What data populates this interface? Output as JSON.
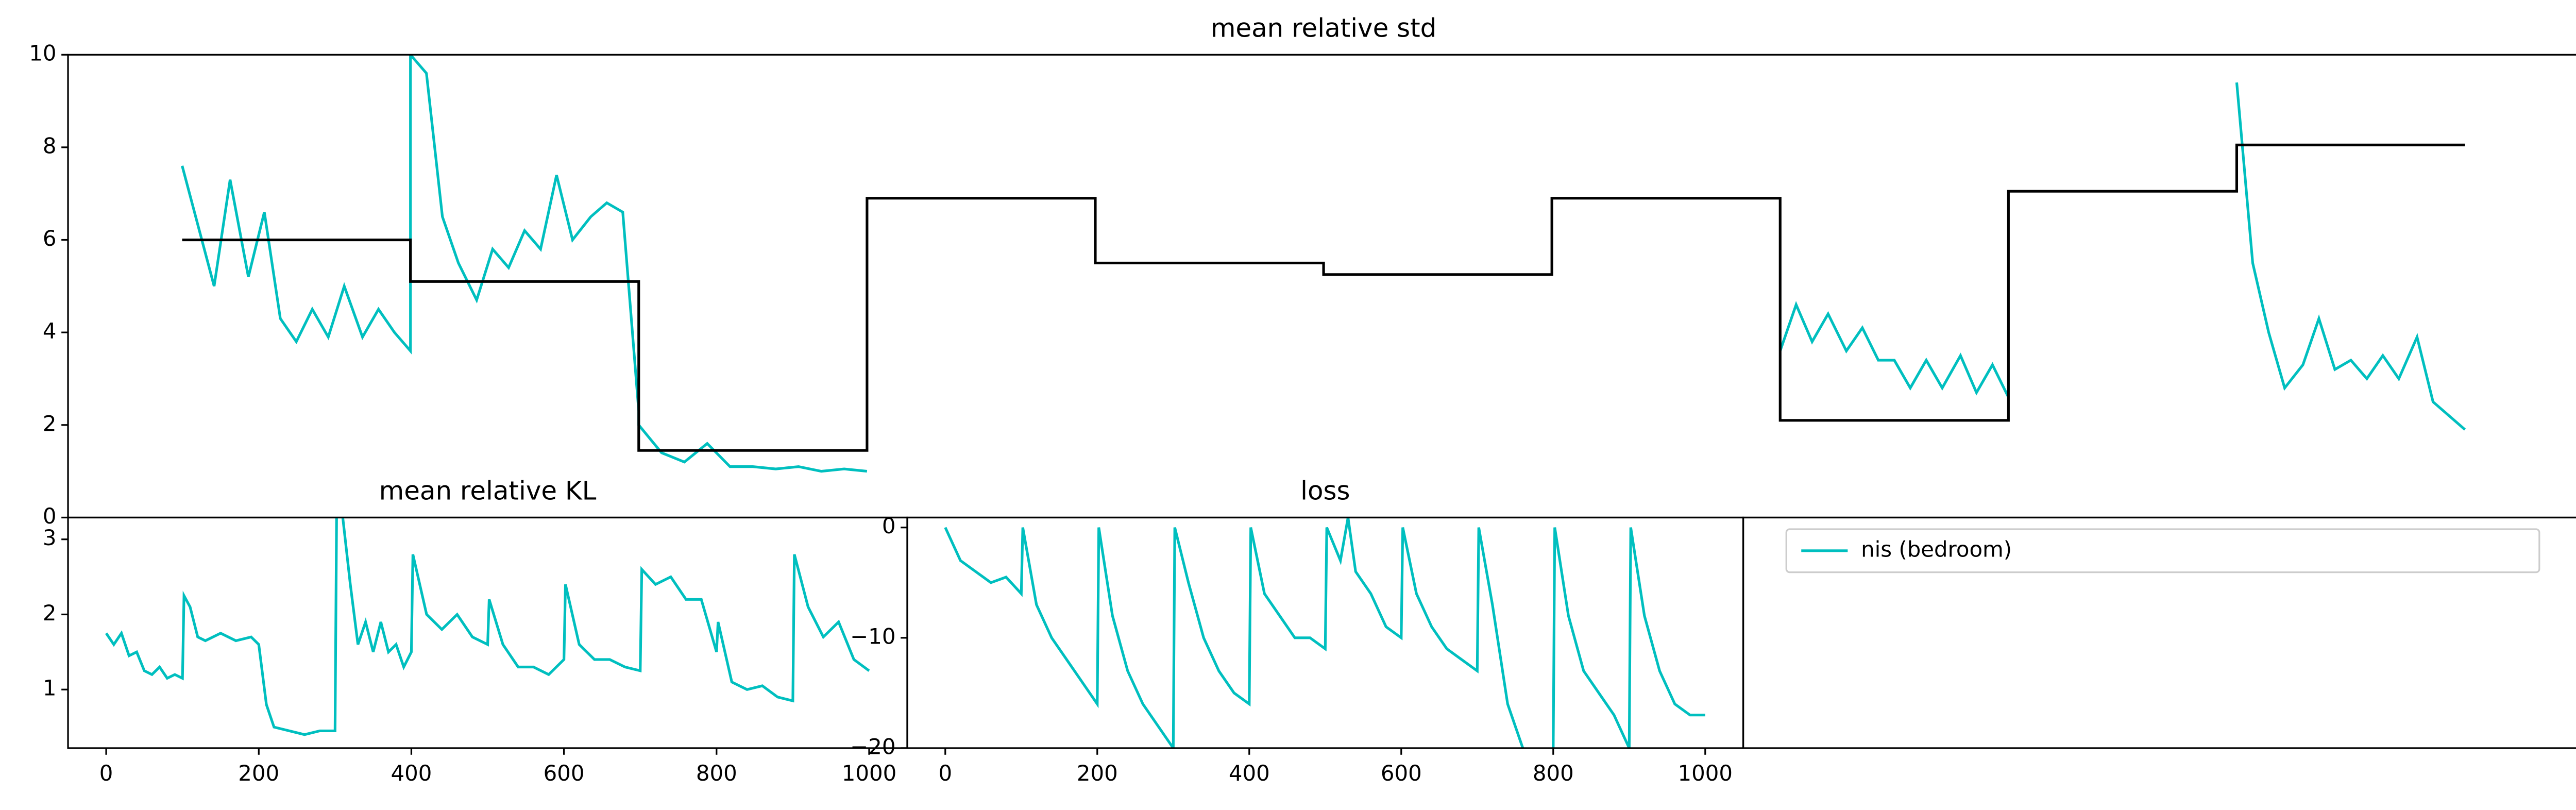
{
  "chart_data": [
    {
      "type": "line",
      "title": "mean relative std",
      "xlim": [
        -0.5,
        10.5
      ],
      "ylim": [
        0,
        10
      ],
      "yticks": [
        0,
        2,
        4,
        6,
        8,
        10
      ],
      "series": [
        {
          "color": "#00bfbf",
          "x": [
            0,
            0.07,
            0.14,
            0.21,
            0.29,
            0.36,
            0.43,
            0.5,
            0.57,
            0.64,
            0.71,
            0.79,
            0.86,
            0.93,
            1.0,
            1.0,
            1.07,
            1.14,
            1.21,
            1.29,
            1.36,
            1.43,
            1.5,
            1.57,
            1.64,
            1.71,
            1.79,
            1.86,
            1.93,
            2.0,
            2.0,
            2.1,
            2.2,
            2.3,
            2.4,
            2.5,
            2.6,
            2.7,
            2.8,
            2.9,
            3.0,
            5.0,
            7.0,
            7.07,
            7.14,
            7.21,
            7.29,
            7.36,
            7.43,
            7.5,
            7.57,
            7.64,
            7.71,
            7.79,
            7.86,
            7.93,
            8.0,
            8.5,
            9.0,
            9.07,
            9.14,
            9.21,
            9.29,
            9.36,
            9.43,
            9.5,
            9.57,
            9.64,
            9.71,
            9.79,
            9.86,
            9.93,
            10.0
          ],
          "values": [
            7.6,
            6.3,
            5.0,
            7.3,
            5.2,
            6.6,
            4.3,
            3.8,
            4.5,
            3.9,
            5.0,
            3.9,
            4.5,
            4.0,
            3.6,
            10.0,
            9.6,
            6.5,
            5.5,
            4.7,
            5.8,
            5.4,
            6.2,
            5.8,
            7.4,
            6.0,
            6.5,
            6.8,
            6.6,
            2.3,
            2.0,
            1.4,
            1.2,
            1.6,
            1.1,
            1.1,
            1.05,
            1.1,
            1.0,
            1.05,
            1.0,
            null,
            3.6,
            4.6,
            3.8,
            4.4,
            3.6,
            4.1,
            3.4,
            3.4,
            2.8,
            3.4,
            2.8,
            3.5,
            2.7,
            3.3,
            2.6,
            null,
            9.4,
            5.5,
            4.0,
            2.8,
            3.3,
            4.3,
            3.2,
            3.4,
            3.0,
            3.5,
            3.0,
            3.9,
            2.5,
            2.2,
            1.9
          ]
        },
        {
          "color": "#000000",
          "drawstyle": "steps-post",
          "x": [
            0,
            1,
            2,
            3,
            4,
            5,
            6,
            7,
            8,
            9,
            10
          ],
          "values": [
            6.0,
            5.1,
            1.45,
            6.9,
            5.5,
            5.25,
            6.9,
            2.1,
            7.05,
            8.05,
            8.05
          ]
        }
      ]
    },
    {
      "type": "line",
      "title": "mean relative KL",
      "xlim": [
        -50,
        1050
      ],
      "ylim": [
        0.22,
        3.29
      ],
      "yticks": [
        1,
        2,
        3
      ],
      "xticks": [
        0,
        200,
        400,
        600,
        800,
        1000
      ],
      "series": [
        {
          "color": "#00bfbf",
          "x": [
            0,
            10,
            20,
            30,
            40,
            50,
            60,
            70,
            80,
            90,
            100,
            102,
            110,
            120,
            130,
            150,
            170,
            190,
            200,
            210,
            220,
            240,
            260,
            280,
            300,
            302,
            310,
            320,
            330,
            340,
            350,
            360,
            370,
            380,
            390,
            400,
            402,
            420,
            440,
            460,
            480,
            500,
            502,
            520,
            540,
            560,
            580,
            600,
            602,
            620,
            640,
            660,
            680,
            700,
            702,
            720,
            740,
            760,
            780,
            800,
            802,
            820,
            840,
            860,
            880,
            900,
            902,
            920,
            940,
            960,
            980,
            1000
          ],
          "values": [
            1.75,
            1.6,
            1.75,
            1.45,
            1.5,
            1.25,
            1.2,
            1.3,
            1.15,
            1.2,
            1.15,
            2.25,
            2.1,
            1.7,
            1.65,
            1.75,
            1.65,
            1.7,
            1.6,
            0.8,
            0.5,
            0.45,
            0.4,
            0.45,
            0.45,
            3.3,
            3.3,
            2.4,
            1.6,
            1.9,
            1.5,
            1.9,
            1.5,
            1.6,
            1.3,
            1.5,
            2.8,
            2.0,
            1.8,
            2.0,
            1.7,
            1.6,
            2.2,
            1.6,
            1.3,
            1.3,
            1.2,
            1.4,
            2.4,
            1.6,
            1.4,
            1.4,
            1.3,
            1.25,
            2.6,
            2.4,
            2.5,
            2.2,
            2.2,
            1.5,
            1.9,
            1.1,
            1.0,
            1.05,
            0.9,
            0.85,
            2.8,
            2.1,
            1.7,
            1.9,
            1.4,
            1.25
          ]
        }
      ]
    },
    {
      "type": "line",
      "title": "loss",
      "xlim": [
        -50,
        1050
      ],
      "ylim": [
        -20,
        0.9
      ],
      "yticks": [
        0,
        {
          "value": -10,
          "label": "−10"
        },
        {
          "value": -20,
          "label": "−20"
        }
      ],
      "xticks": [
        0,
        200,
        400,
        600,
        800,
        1000
      ],
      "series": [
        {
          "color": "#00bfbf",
          "x": [
            0,
            20,
            40,
            60,
            80,
            100,
            102,
            120,
            140,
            160,
            180,
            200,
            202,
            220,
            240,
            260,
            280,
            300,
            302,
            320,
            340,
            360,
            380,
            400,
            402,
            420,
            440,
            460,
            480,
            500,
            502,
            520,
            530,
            540,
            560,
            580,
            600,
            602,
            620,
            640,
            660,
            680,
            700,
            702,
            720,
            740,
            760,
            770,
            800,
            802,
            820,
            840,
            860,
            880,
            900,
            902,
            920,
            940,
            960,
            980,
            1000
          ],
          "values": [
            0,
            -3,
            -4,
            -5,
            -4.5,
            -6,
            0,
            -7,
            -10,
            -12,
            -14,
            -16,
            0,
            -8,
            -13,
            -16,
            -18,
            -20,
            0,
            -5,
            -10,
            -13,
            -15,
            -16,
            0,
            -6,
            -8,
            -10,
            -10,
            -11,
            0,
            -3,
            0.9,
            -4,
            -6,
            -9,
            -10,
            0,
            -6,
            -9,
            -11,
            -12,
            -13,
            0,
            -7,
            -16,
            -20,
            null,
            -20,
            0,
            -8,
            -13,
            -15,
            -17,
            -20,
            0,
            -8,
            -13,
            -16,
            -17,
            -17
          ]
        }
      ]
    }
  ],
  "legend": {
    "entries": [
      {
        "label": "nis (bedroom)",
        "color": "#00bfbf"
      }
    ]
  }
}
